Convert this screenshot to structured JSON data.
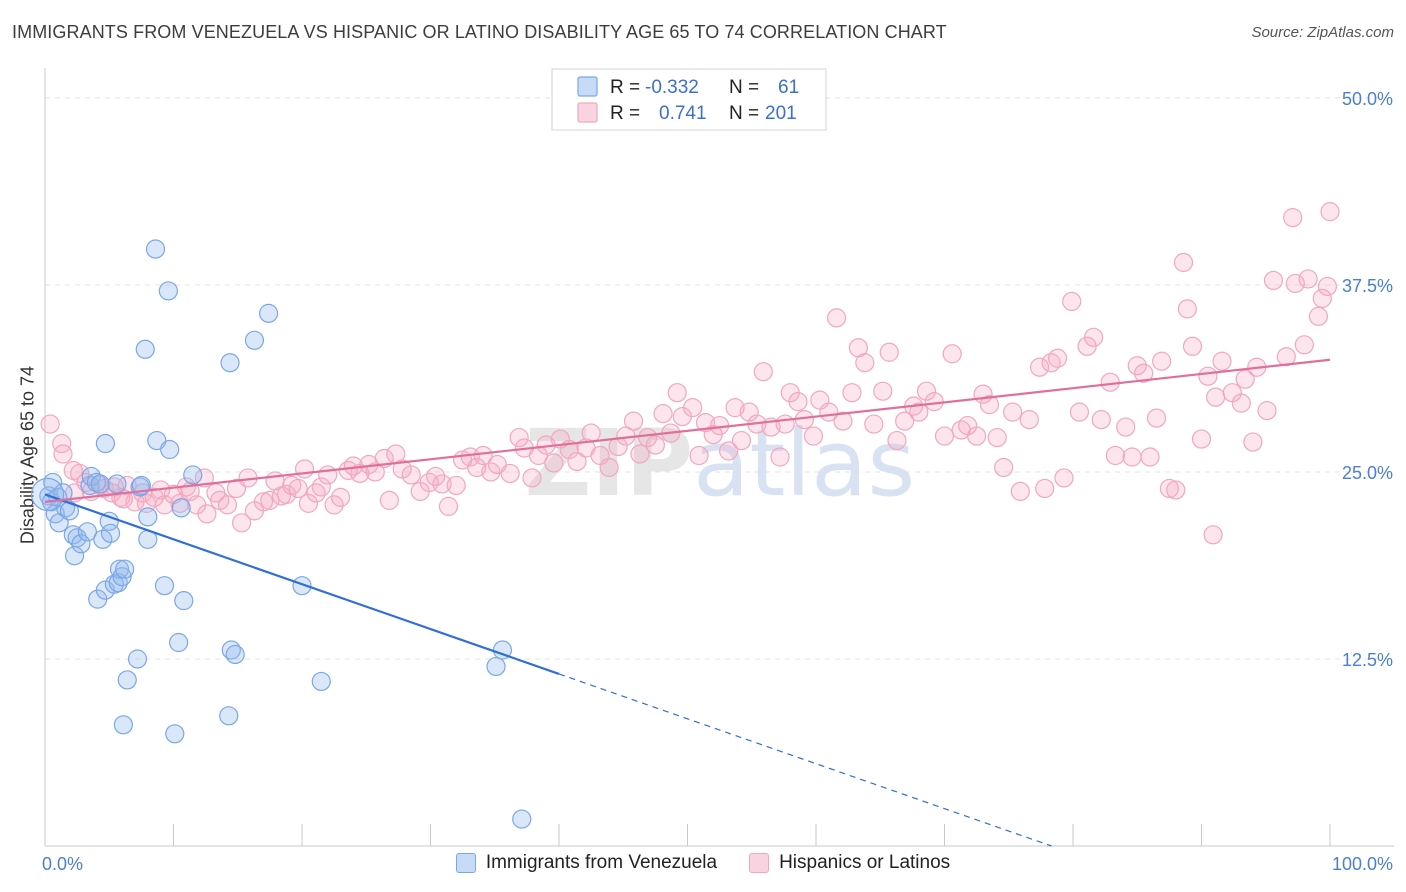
{
  "chart_data": {
    "type": "scatter",
    "title": "IMMIGRANTS FROM VENEZUELA VS HISPANIC OR LATINO DISABILITY AGE 65 TO 74 CORRELATION CHART",
    "source": "Source: ZipAtlas.com",
    "watermark": "ZIPatlas",
    "xlabel": "",
    "ylabel": "Disability Age 65 to 74",
    "xlim": [
      0,
      100
    ],
    "ylim": [
      0,
      52
    ],
    "x_tick_labels": [
      {
        "value": 0,
        "label": "0.0%"
      },
      {
        "value": 100,
        "label": "100.0%"
      }
    ],
    "x_minor_ticks": [
      0,
      10,
      20,
      30,
      40,
      50,
      60,
      70,
      80,
      90,
      100
    ],
    "y_ticks": [
      {
        "value": 12.5,
        "label": "12.5%"
      },
      {
        "value": 25,
        "label": "25.0%"
      },
      {
        "value": 37.5,
        "label": "37.5%"
      },
      {
        "value": 50,
        "label": "50.0%"
      }
    ],
    "legend_stats": [
      {
        "r_label": "R =",
        "r_value": "-0.332",
        "n_label": "N =",
        "n_value": "61"
      },
      {
        "r_label": "R =",
        "r_value": "0.741",
        "n_label": "N =",
        "n_value": "201"
      }
    ],
    "series": [
      {
        "name": "Immigrants from Venezuela",
        "color": "#7aa7e8",
        "line_color": "#2f6fd6",
        "trend": {
          "x0": 0,
          "y0": 23.5,
          "x1": 40,
          "y1": 11.5,
          "dashed_to_x": 100,
          "dashed_to_y": -6.5
        },
        "points": [
          [
            0.3,
            23.4
          ],
          [
            0.5,
            23
          ],
          [
            0.6,
            24.3
          ],
          [
            0.8,
            22.2
          ],
          [
            1.0,
            23.3
          ],
          [
            1.1,
            21.6
          ],
          [
            1.4,
            23.6
          ],
          [
            1.6,
            22.6
          ],
          [
            1.9,
            22.4
          ],
          [
            2.2,
            20.8
          ],
          [
            2.3,
            19.4
          ],
          [
            2.5,
            20.6
          ],
          [
            2.8,
            20.2
          ],
          [
            3.3,
            21
          ],
          [
            3.5,
            24.1
          ],
          [
            3.6,
            24.7
          ],
          [
            4.0,
            24.3
          ],
          [
            4.1,
            16.5
          ],
          [
            4.3,
            24.2
          ],
          [
            4.5,
            20.5
          ],
          [
            4.7,
            17.1
          ],
          [
            4.7,
            26.9
          ],
          [
            5.0,
            21.7
          ],
          [
            5.1,
            20.9
          ],
          [
            5.4,
            17.5
          ],
          [
            5.6,
            24.2
          ],
          [
            5.7,
            17.6
          ],
          [
            5.8,
            18.5
          ],
          [
            6.0,
            18.0
          ],
          [
            6.1,
            8.1
          ],
          [
            6.2,
            18.5
          ],
          [
            6.4,
            11.1
          ],
          [
            7.2,
            12.5
          ],
          [
            7.4,
            24.0
          ],
          [
            7.5,
            24.1
          ],
          [
            7.8,
            33.2
          ],
          [
            8.0,
            22.0
          ],
          [
            8.0,
            20.5
          ],
          [
            8.6,
            39.9
          ],
          [
            8.7,
            27.1
          ],
          [
            9.3,
            17.4
          ],
          [
            9.6,
            37.1
          ],
          [
            9.7,
            26.5
          ],
          [
            10.1,
            7.5
          ],
          [
            10.4,
            13.6
          ],
          [
            10.6,
            22.6
          ],
          [
            10.8,
            16.4
          ],
          [
            11.5,
            24.8
          ],
          [
            14.3,
            8.7
          ],
          [
            14.4,
            32.3
          ],
          [
            14.5,
            13.1
          ],
          [
            14.8,
            12.8
          ],
          [
            16.3,
            33.8
          ],
          [
            17.4,
            35.6
          ],
          [
            20.0,
            17.4
          ],
          [
            21.5,
            11.0
          ],
          [
            35.1,
            12.0
          ],
          [
            35.6,
            13.1
          ],
          [
            37.1,
            1.8
          ]
        ]
      },
      {
        "name": "Hispanics or Latinos",
        "color": "#f2a7bf",
        "line_color": "#e0709a",
        "trend": {
          "x0": 0,
          "y0": 23.0,
          "x1": 100,
          "y1": 32.5
        },
        "points": [
          [
            0.4,
            28.2
          ],
          [
            1.3,
            26.9
          ],
          [
            1.4,
            26.2
          ],
          [
            2.2,
            25.1
          ],
          [
            2.3,
            23.6
          ],
          [
            2.7,
            24.9
          ],
          [
            3.2,
            24.3
          ],
          [
            3.6,
            23.7
          ],
          [
            4.3,
            24.1
          ],
          [
            4.6,
            23.9
          ],
          [
            5.2,
            23.6
          ],
          [
            5.4,
            24.0
          ],
          [
            5.9,
            23.3
          ],
          [
            6.1,
            23.2
          ],
          [
            6.4,
            24.1
          ],
          [
            7.0,
            23.0
          ],
          [
            7.6,
            23.6
          ],
          [
            7.9,
            22.9
          ],
          [
            8.5,
            23.3
          ],
          [
            9.0,
            23.8
          ],
          [
            9.3,
            22.8
          ],
          [
            10.0,
            23.5
          ],
          [
            10.5,
            22.9
          ],
          [
            11.0,
            24.0
          ],
          [
            11.3,
            23.7
          ],
          [
            11.8,
            22.8
          ],
          [
            12.4,
            24.6
          ],
          [
            12.6,
            22.2
          ],
          [
            13.3,
            23.6
          ],
          [
            13.6,
            23.1
          ],
          [
            14.2,
            22.8
          ],
          [
            14.9,
            23.9
          ],
          [
            15.3,
            21.6
          ],
          [
            15.8,
            24.6
          ],
          [
            16.3,
            22.4
          ],
          [
            17.0,
            23.0
          ],
          [
            17.5,
            23.1
          ],
          [
            17.9,
            24.4
          ],
          [
            18.4,
            23.4
          ],
          [
            18.8,
            23.5
          ],
          [
            19.2,
            24.1
          ],
          [
            19.7,
            23.9
          ],
          [
            20.2,
            25.2
          ],
          [
            20.5,
            22.9
          ],
          [
            21.1,
            23.6
          ],
          [
            21.5,
            24.0
          ],
          [
            22.0,
            24.8
          ],
          [
            22.5,
            22.8
          ],
          [
            23.0,
            23.3
          ],
          [
            23.6,
            25.1
          ],
          [
            24.0,
            25.4
          ],
          [
            24.5,
            24.9
          ],
          [
            25.2,
            25.5
          ],
          [
            25.7,
            25.0
          ],
          [
            26.4,
            25.9
          ],
          [
            26.8,
            23.1
          ],
          [
            27.3,
            26.2
          ],
          [
            27.8,
            25.2
          ],
          [
            28.5,
            24.8
          ],
          [
            29.2,
            23.7
          ],
          [
            29.9,
            24.3
          ],
          [
            30.4,
            24.7
          ],
          [
            30.9,
            24.2
          ],
          [
            31.4,
            22.7
          ],
          [
            32.0,
            24.1
          ],
          [
            32.5,
            25.8
          ],
          [
            33.1,
            26.0
          ],
          [
            33.6,
            25.3
          ],
          [
            34.1,
            26.1
          ],
          [
            34.7,
            25.0
          ],
          [
            35.2,
            25.5
          ],
          [
            36.2,
            24.9
          ],
          [
            36.9,
            27.3
          ],
          [
            37.3,
            26.6
          ],
          [
            37.9,
            24.6
          ],
          [
            38.4,
            26.1
          ],
          [
            39.0,
            26.8
          ],
          [
            39.6,
            25.6
          ],
          [
            40.1,
            27.2
          ],
          [
            40.8,
            26.5
          ],
          [
            41.4,
            25.7
          ],
          [
            42.1,
            26.6
          ],
          [
            42.5,
            27.6
          ],
          [
            43.2,
            26.1
          ],
          [
            43.9,
            25.3
          ],
          [
            44.6,
            26.7
          ],
          [
            45.2,
            27.4
          ],
          [
            45.8,
            28.4
          ],
          [
            46.3,
            26.2
          ],
          [
            46.9,
            27.3
          ],
          [
            47.5,
            26.8
          ],
          [
            48.1,
            28.9
          ],
          [
            48.7,
            27.6
          ],
          [
            49.2,
            30.3
          ],
          [
            49.6,
            28.7
          ],
          [
            50.4,
            29.3
          ],
          [
            50.9,
            26.1
          ],
          [
            51.4,
            28.3
          ],
          [
            52.0,
            27.5
          ],
          [
            52.5,
            28.1
          ],
          [
            53.2,
            26.4
          ],
          [
            53.7,
            29.3
          ],
          [
            54.2,
            27.1
          ],
          [
            54.8,
            29.0
          ],
          [
            55.4,
            28.2
          ],
          [
            55.9,
            31.7
          ],
          [
            56.5,
            28.0
          ],
          [
            57.2,
            26.0
          ],
          [
            57.6,
            28.2
          ],
          [
            58.0,
            30.3
          ],
          [
            58.6,
            29.7
          ],
          [
            59.1,
            28.5
          ],
          [
            59.8,
            27.4
          ],
          [
            60.3,
            29.8
          ],
          [
            61.0,
            29.0
          ],
          [
            61.6,
            35.3
          ],
          [
            62.1,
            28.4
          ],
          [
            62.8,
            30.3
          ],
          [
            63.3,
            33.3
          ],
          [
            63.8,
            32.3
          ],
          [
            64.5,
            28.2
          ],
          [
            65.2,
            30.4
          ],
          [
            65.7,
            33.0
          ],
          [
            66.3,
            27.1
          ],
          [
            66.9,
            28.4
          ],
          [
            67.6,
            29.4
          ],
          [
            68.0,
            29.0
          ],
          [
            68.6,
            30.4
          ],
          [
            69.2,
            29.7
          ],
          [
            70.0,
            27.4
          ],
          [
            70.6,
            32.9
          ],
          [
            71.3,
            27.8
          ],
          [
            71.8,
            28.1
          ],
          [
            72.5,
            27.4
          ],
          [
            73.0,
            30.2
          ],
          [
            73.5,
            29.5
          ],
          [
            74.1,
            27.3
          ],
          [
            74.6,
            25.3
          ],
          [
            75.3,
            29.0
          ],
          [
            75.9,
            23.7
          ],
          [
            76.6,
            28.5
          ],
          [
            77.4,
            32.0
          ],
          [
            77.8,
            23.9
          ],
          [
            78.3,
            32.3
          ],
          [
            78.8,
            32.6
          ],
          [
            79.3,
            24.6
          ],
          [
            79.9,
            36.4
          ],
          [
            80.5,
            29.0
          ],
          [
            81.1,
            33.4
          ],
          [
            81.6,
            34.0
          ],
          [
            82.2,
            28.5
          ],
          [
            82.9,
            31.0
          ],
          [
            83.3,
            26.1
          ],
          [
            84.1,
            28.0
          ],
          [
            84.6,
            26.0
          ],
          [
            85.0,
            32.1
          ],
          [
            85.5,
            31.6
          ],
          [
            86.0,
            26.0
          ],
          [
            86.5,
            28.6
          ],
          [
            86.9,
            32.4
          ],
          [
            87.5,
            23.9
          ],
          [
            88.0,
            23.8
          ],
          [
            88.6,
            39.0
          ],
          [
            88.9,
            35.9
          ],
          [
            89.3,
            33.4
          ],
          [
            90.0,
            27.2
          ],
          [
            90.5,
            31.4
          ],
          [
            90.9,
            20.8
          ],
          [
            91.1,
            30.0
          ],
          [
            91.6,
            32.4
          ],
          [
            92.4,
            30.3
          ],
          [
            93.1,
            29.6
          ],
          [
            93.4,
            31.2
          ],
          [
            94.0,
            27.0
          ],
          [
            94.3,
            32.0
          ],
          [
            95.1,
            29.1
          ],
          [
            95.6,
            37.8
          ],
          [
            96.6,
            32.7
          ],
          [
            97.1,
            42.0
          ],
          [
            97.3,
            37.6
          ],
          [
            98.0,
            33.5
          ],
          [
            98.3,
            37.9
          ],
          [
            99.1,
            35.4
          ],
          [
            99.4,
            36.6
          ],
          [
            99.8,
            37.4
          ],
          [
            100.0,
            42.4
          ]
        ]
      }
    ]
  }
}
